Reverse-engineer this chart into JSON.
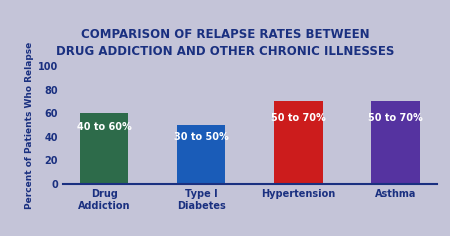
{
  "title": "COMPARISON OF RELAPSE RATES BETWEEN\nDRUG ADDICTION AND OTHER CHRONIC ILLNESSES",
  "categories": [
    "Drug\nAddiction",
    "Type I\nDiabetes",
    "Hypertension",
    "Asthma"
  ],
  "values": [
    60,
    50,
    70,
    70
  ],
  "bar_colors": [
    "#2d6b4a",
    "#1a5cb8",
    "#cc1c1c",
    "#5533a0"
  ],
  "bar_labels": [
    "40 to 60%",
    "30 to 50%",
    "50 to 70%",
    "50 to 70%"
  ],
  "ylabel": "Percent of Patients Who Relapse",
  "ylim": [
    0,
    100
  ],
  "yticks": [
    0,
    20,
    40,
    60,
    80,
    100
  ],
  "background_color": "#c4c4d8",
  "plot_bg_color": "#c4c4d8",
  "title_color": "#1a3080",
  "title_fontsize": 8.5,
  "label_fontsize": 7.0,
  "bar_label_fontsize": 7.0,
  "ylabel_fontsize": 6.5
}
